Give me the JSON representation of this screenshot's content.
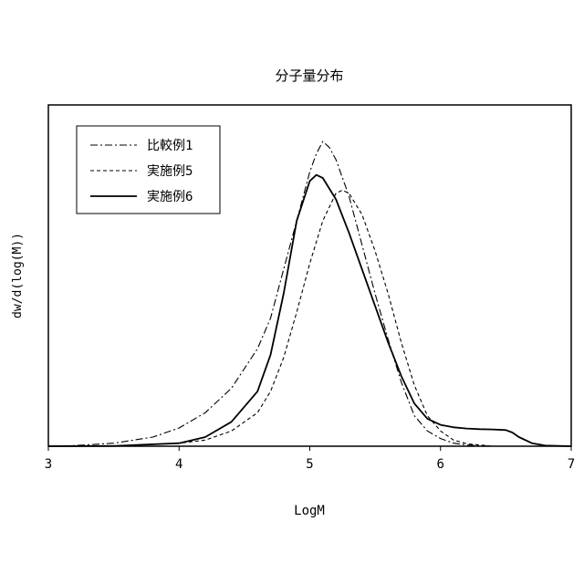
{
  "chart_data": {
    "type": "line",
    "title": "分子量分布",
    "xlabel": "LogM",
    "ylabel": "dw/d(log(M))",
    "xlim": [
      3,
      7
    ],
    "ylim": [
      0,
      1.0
    ],
    "xticks": [
      3,
      4,
      5,
      6,
      7
    ],
    "y_ticks_shown": false,
    "grid": false,
    "legend": {
      "placement": "top-left"
    },
    "series": [
      {
        "name": "比較例1",
        "style": "dash-dot",
        "color": "#000000",
        "points": [
          [
            3.0,
            0.0
          ],
          [
            3.2,
            0.002
          ],
          [
            3.5,
            0.01
          ],
          [
            3.8,
            0.03
          ],
          [
            4.0,
            0.06
          ],
          [
            4.2,
            0.11
          ],
          [
            4.4,
            0.19
          ],
          [
            4.6,
            0.32
          ],
          [
            4.7,
            0.42
          ],
          [
            4.8,
            0.58
          ],
          [
            4.9,
            0.74
          ],
          [
            5.0,
            0.9
          ],
          [
            5.05,
            0.96
          ],
          [
            5.1,
            1.0
          ],
          [
            5.15,
            0.98
          ],
          [
            5.2,
            0.94
          ],
          [
            5.3,
            0.82
          ],
          [
            5.4,
            0.66
          ],
          [
            5.5,
            0.5
          ],
          [
            5.6,
            0.35
          ],
          [
            5.7,
            0.21
          ],
          [
            5.8,
            0.1
          ],
          [
            5.9,
            0.05
          ],
          [
            6.0,
            0.025
          ],
          [
            6.1,
            0.01
          ],
          [
            6.2,
            0.004
          ],
          [
            6.4,
            0.0
          ]
        ]
      },
      {
        "name": "実施例5",
        "style": "dashed",
        "color": "#000000",
        "points": [
          [
            3.0,
            0.0
          ],
          [
            3.5,
            0.001
          ],
          [
            4.0,
            0.01
          ],
          [
            4.2,
            0.02
          ],
          [
            4.4,
            0.05
          ],
          [
            4.6,
            0.11
          ],
          [
            4.7,
            0.18
          ],
          [
            4.8,
            0.29
          ],
          [
            4.9,
            0.44
          ],
          [
            5.0,
            0.6
          ],
          [
            5.1,
            0.74
          ],
          [
            5.2,
            0.83
          ],
          [
            5.25,
            0.84
          ],
          [
            5.3,
            0.83
          ],
          [
            5.4,
            0.76
          ],
          [
            5.5,
            0.64
          ],
          [
            5.6,
            0.5
          ],
          [
            5.7,
            0.34
          ],
          [
            5.8,
            0.2
          ],
          [
            5.9,
            0.1
          ],
          [
            6.0,
            0.05
          ],
          [
            6.1,
            0.02
          ],
          [
            6.2,
            0.008
          ],
          [
            6.4,
            0.0
          ]
        ]
      },
      {
        "name": "実施例6",
        "style": "solid",
        "color": "#000000",
        "points": [
          [
            3.0,
            0.0
          ],
          [
            3.5,
            0.001
          ],
          [
            4.0,
            0.01
          ],
          [
            4.2,
            0.03
          ],
          [
            4.4,
            0.08
          ],
          [
            4.6,
            0.18
          ],
          [
            4.7,
            0.3
          ],
          [
            4.8,
            0.5
          ],
          [
            4.9,
            0.74
          ],
          [
            5.0,
            0.87
          ],
          [
            5.05,
            0.89
          ],
          [
            5.1,
            0.88
          ],
          [
            5.2,
            0.81
          ],
          [
            5.3,
            0.7
          ],
          [
            5.4,
            0.58
          ],
          [
            5.5,
            0.46
          ],
          [
            5.6,
            0.34
          ],
          [
            5.7,
            0.23
          ],
          [
            5.8,
            0.14
          ],
          [
            5.9,
            0.09
          ],
          [
            6.0,
            0.07
          ],
          [
            6.1,
            0.062
          ],
          [
            6.2,
            0.058
          ],
          [
            6.3,
            0.056
          ],
          [
            6.4,
            0.055
          ],
          [
            6.5,
            0.053
          ],
          [
            6.55,
            0.045
          ],
          [
            6.6,
            0.03
          ],
          [
            6.7,
            0.01
          ],
          [
            6.8,
            0.002
          ],
          [
            7.0,
            0.0
          ]
        ]
      }
    ]
  }
}
